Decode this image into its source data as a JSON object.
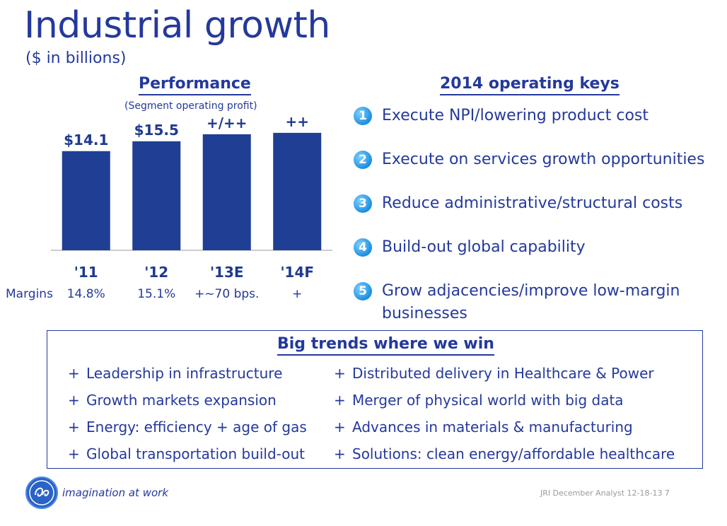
{
  "title": "Industrial growth",
  "subtitle": "($ in billions)",
  "performance": {
    "title": "Performance",
    "subtitle": "(Segment operating profit)",
    "margins_label": "Margins"
  },
  "chart_data": {
    "type": "bar",
    "categories": [
      "'11",
      "'12",
      "'13E",
      "'14F"
    ],
    "values": [
      14.1,
      15.5,
      16.5,
      16.7
    ],
    "value_labels": [
      "$14.1",
      "$15.5",
      "+/++",
      "++"
    ],
    "margins": [
      "14.8%",
      "15.1%",
      "+~70 bps.",
      "+"
    ],
    "title": "Performance",
    "ylabel": "",
    "xlabel": "",
    "ylim": [
      0,
      18.5
    ],
    "color": "#1f3f94",
    "grid": false
  },
  "operating_keys": {
    "title": "2014 operating keys",
    "items": [
      {
        "num": "1",
        "text": "Execute NPI/lowering product cost"
      },
      {
        "num": "2",
        "text": "Execute on services growth opportunities"
      },
      {
        "num": "3",
        "text": "Reduce administrative/structural costs"
      },
      {
        "num": "4",
        "text": "Build-out global capability"
      },
      {
        "num": "5",
        "text": "Grow adjacencies/improve low-margin businesses"
      }
    ]
  },
  "trends": {
    "title": "Big trends where we win",
    "bullet": "+",
    "left": [
      "Leadership in infrastructure",
      "Growth markets expansion",
      "Energy:  efficiency + age of gas",
      "Global transportation build-out"
    ],
    "right": [
      "Distributed delivery in Healthcare & Power",
      "Merger of physical world with big data",
      "Advances in materials & manufacturing",
      "Solutions:  clean energy/affordable healthcare"
    ]
  },
  "footer": {
    "tagline": "imagination at work",
    "text": "JRI December Analyst 12-18-13   7"
  },
  "logo": {
    "icon": "ge-monogram-icon",
    "color": "#2a62c8"
  }
}
